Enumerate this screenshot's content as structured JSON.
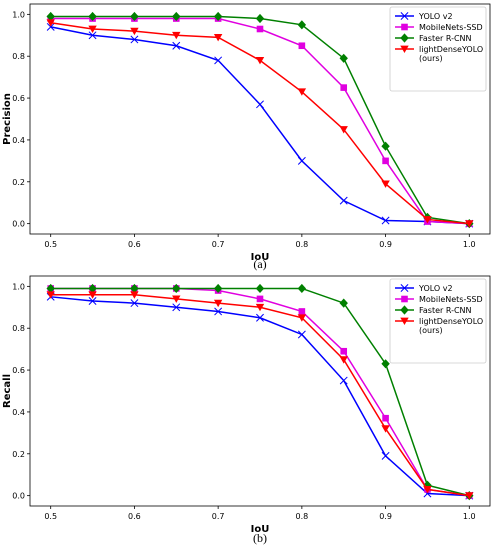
{
  "chart_data": [
    {
      "type": "line",
      "caption": "(a)",
      "xlabel": "IoU",
      "ylabel": "Precision",
      "xlim": [
        0.5,
        1.0
      ],
      "ylim": [
        0.0,
        1.0
      ],
      "xticks": [
        "0.5",
        "0.6",
        "0.7",
        "0.8",
        "0.9",
        "1.0"
      ],
      "yticks": [
        "0.0",
        "0.2",
        "0.4",
        "0.6",
        "0.8",
        "1.0"
      ],
      "grid": false,
      "legend_position": "top-right",
      "x": [
        0.5,
        0.55,
        0.6,
        0.65,
        0.7,
        0.75,
        0.8,
        0.85,
        0.9,
        0.95,
        1.0
      ],
      "series": [
        {
          "name": "YOLO v2",
          "color": "#0000ff",
          "marker": "x",
          "values": [
            0.94,
            0.9,
            0.88,
            0.85,
            0.78,
            0.57,
            0.3,
            0.11,
            0.015,
            0.01,
            0.0
          ]
        },
        {
          "name": "MobileNets-SSD",
          "color": "#e000e0",
          "marker": "square",
          "values": [
            0.98,
            0.98,
            0.98,
            0.98,
            0.98,
            0.93,
            0.85,
            0.65,
            0.3,
            0.01,
            0.0
          ]
        },
        {
          "name": "Faster R-CNN",
          "color": "#008000",
          "marker": "diamond",
          "values": [
            0.99,
            0.99,
            0.99,
            0.99,
            0.99,
            0.98,
            0.95,
            0.79,
            0.37,
            0.03,
            0.0
          ]
        },
        {
          "name": "lightDenseYOLO\n(ours)",
          "color": "#ff0000",
          "marker": "triangle-down",
          "values": [
            0.96,
            0.93,
            0.92,
            0.9,
            0.89,
            0.78,
            0.63,
            0.45,
            0.19,
            0.02,
            0.0
          ]
        }
      ]
    },
    {
      "type": "line",
      "caption": "(b)",
      "xlabel": "IoU",
      "ylabel": "Recall",
      "xlim": [
        0.5,
        1.0
      ],
      "ylim": [
        0.0,
        1.0
      ],
      "xticks": [
        "0.5",
        "0.6",
        "0.7",
        "0.8",
        "0.9",
        "1.0"
      ],
      "yticks": [
        "0.0",
        "0.2",
        "0.4",
        "0.6",
        "0.8",
        "1.0"
      ],
      "grid": false,
      "legend_position": "top-right",
      "x": [
        0.5,
        0.55,
        0.6,
        0.65,
        0.7,
        0.75,
        0.8,
        0.85,
        0.9,
        0.95,
        1.0
      ],
      "series": [
        {
          "name": "YOLO v2",
          "color": "#0000ff",
          "marker": "x",
          "values": [
            0.95,
            0.93,
            0.92,
            0.9,
            0.88,
            0.85,
            0.77,
            0.55,
            0.19,
            0.01,
            0.0
          ]
        },
        {
          "name": "MobileNets-SSD",
          "color": "#e000e0",
          "marker": "square",
          "values": [
            0.99,
            0.99,
            0.99,
            0.99,
            0.98,
            0.94,
            0.88,
            0.69,
            0.37,
            0.03,
            0.0
          ]
        },
        {
          "name": "Faster R-CNN",
          "color": "#008000",
          "marker": "diamond",
          "values": [
            0.99,
            0.99,
            0.99,
            0.99,
            0.99,
            0.99,
            0.99,
            0.92,
            0.63,
            0.05,
            0.0
          ]
        },
        {
          "name": "lightDenseYOLO\n(ours)",
          "color": "#ff0000",
          "marker": "triangle-down",
          "values": [
            0.96,
            0.96,
            0.96,
            0.94,
            0.92,
            0.9,
            0.85,
            0.65,
            0.32,
            0.03,
            0.0
          ]
        }
      ]
    }
  ]
}
